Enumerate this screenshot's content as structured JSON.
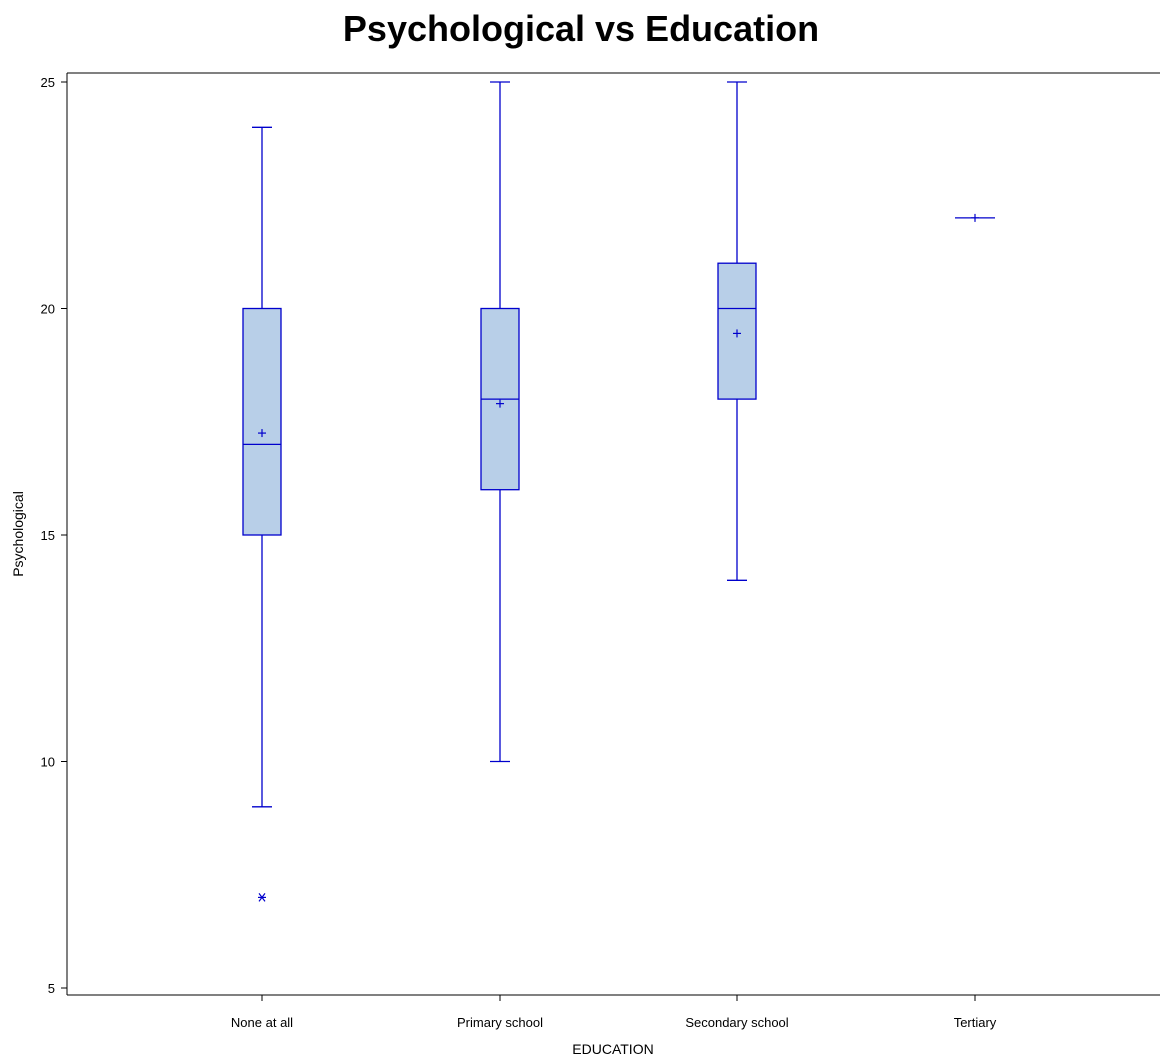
{
  "chart_data": {
    "type": "box",
    "title": "Psychological vs Education",
    "xlabel": "EDUCATION",
    "ylabel": "Psychological",
    "ylim": [
      5,
      25
    ],
    "yticks": [
      5,
      10,
      15,
      20,
      25
    ],
    "categories": [
      "None at all",
      "Primary school",
      "Secondary school",
      "Tertiary"
    ],
    "boxes": [
      {
        "category": "None at all",
        "whisker_low": 9,
        "q1": 15,
        "median": 17,
        "q3": 20,
        "whisker_high": 24,
        "mean": 17.25,
        "outliers": [
          7
        ]
      },
      {
        "category": "Primary school",
        "whisker_low": 10,
        "q1": 16,
        "median": 18,
        "q3": 20,
        "whisker_high": 25,
        "mean": 17.9,
        "outliers": []
      },
      {
        "category": "Secondary school",
        "whisker_low": 14,
        "q1": 18,
        "median": 20,
        "q3": 21,
        "whisker_high": 25,
        "mean": 19.45,
        "outliers": []
      },
      {
        "category": "Tertiary",
        "whisker_low": 22,
        "q1": 22,
        "median": 22,
        "q3": 22,
        "whisker_high": 22,
        "mean": 22,
        "outliers": []
      }
    ],
    "colors": {
      "line": "#0000cc",
      "fill": "#b8cfe8",
      "axis": "#000000"
    }
  }
}
